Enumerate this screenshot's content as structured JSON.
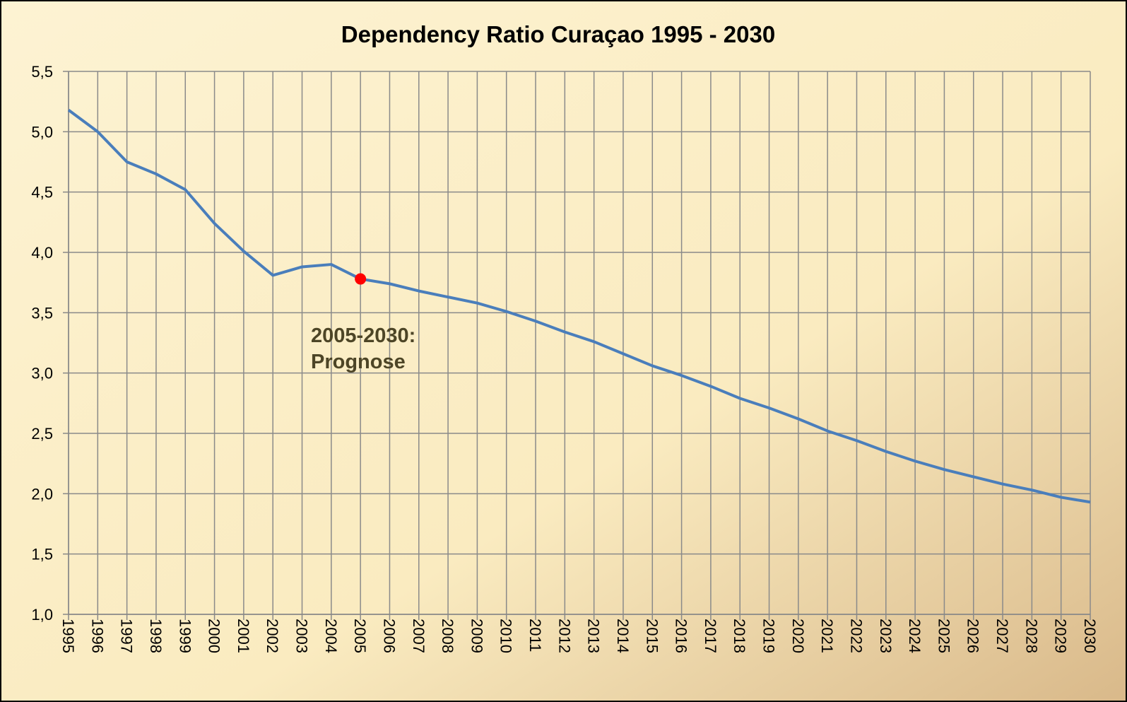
{
  "chart_data": {
    "type": "line",
    "title": "Dependency Ratio Curaçao 1995 - 2030",
    "annotation": [
      "2005-2030:",
      "Prognose"
    ],
    "x": [
      1995,
      1996,
      1997,
      1998,
      1999,
      2000,
      2001,
      2002,
      2003,
      2004,
      2005,
      2006,
      2007,
      2008,
      2009,
      2010,
      2011,
      2012,
      2013,
      2014,
      2015,
      2016,
      2017,
      2018,
      2019,
      2020,
      2021,
      2022,
      2023,
      2024,
      2025,
      2026,
      2027,
      2028,
      2029,
      2030
    ],
    "series": [
      {
        "color": "#4a7ebb",
        "values": [
          5.18,
          5.0,
          4.75,
          4.65,
          4.52,
          4.24,
          4.01,
          3.81,
          3.88,
          3.9,
          3.78,
          3.74,
          3.68,
          3.63,
          3.58,
          3.51,
          3.43,
          3.34,
          3.26,
          3.16,
          3.06,
          2.98,
          2.89,
          2.79,
          2.71,
          2.62,
          2.52,
          2.44,
          2.35,
          2.27,
          2.2,
          2.14,
          2.08,
          2.03,
          1.97,
          1.93
        ]
      }
    ],
    "highlight": {
      "x": 2005,
      "color": "#ff0000"
    },
    "xlim": [
      1995,
      2030
    ],
    "xticks": [
      1995,
      1996,
      1997,
      1998,
      1999,
      2000,
      2001,
      2002,
      2003,
      2004,
      2005,
      2006,
      2007,
      2008,
      2009,
      2010,
      2011,
      2012,
      2013,
      2014,
      2015,
      2016,
      2017,
      2018,
      2019,
      2020,
      2021,
      2022,
      2023,
      2024,
      2025,
      2026,
      2027,
      2028,
      2029,
      2030
    ],
    "ylim": [
      1.0,
      5.5
    ],
    "yticks": [
      {
        "value": 1.0,
        "label": "1,0"
      },
      {
        "value": 1.5,
        "label": "1,5"
      },
      {
        "value": 2.0,
        "label": "2,0"
      },
      {
        "value": 2.5,
        "label": "2,5"
      },
      {
        "value": 3.0,
        "label": "3,0"
      },
      {
        "value": 3.5,
        "label": "3,5"
      },
      {
        "value": 4.0,
        "label": "4,0"
      },
      {
        "value": 4.5,
        "label": "4,5"
      },
      {
        "value": 5.0,
        "label": "5,0"
      },
      {
        "value": 5.5,
        "label": "5,5"
      }
    ],
    "grid": true
  }
}
